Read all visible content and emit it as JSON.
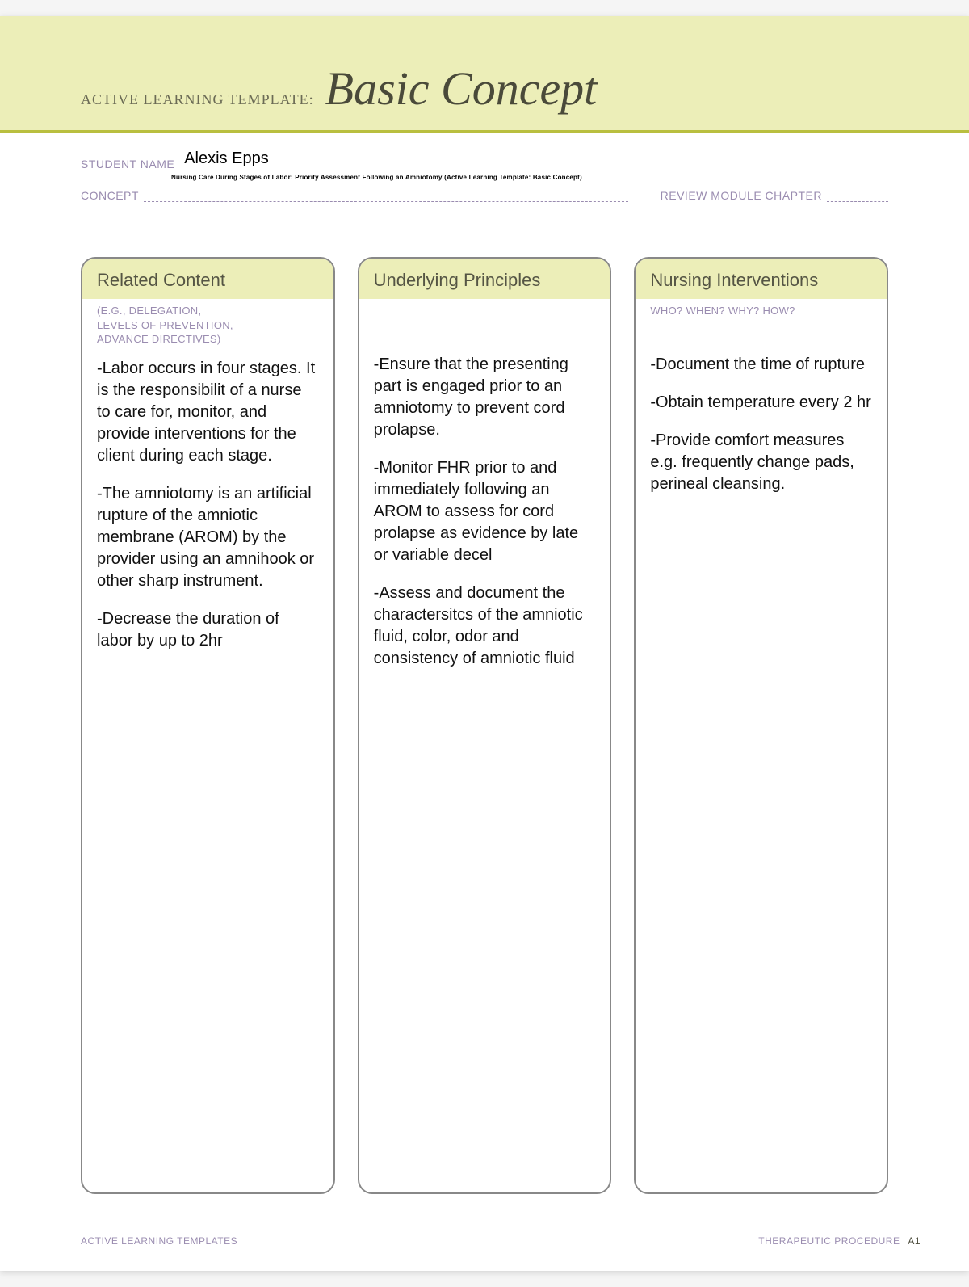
{
  "colors": {
    "banner_bg": "#eceeb8",
    "banner_rule": "#b9bf3f",
    "label_purple": "#9a8cb0",
    "title_olive": "#4a4a3a",
    "card_border": "#888888"
  },
  "banner": {
    "prefix": "ACTIVE LEARNING TEMPLATE:",
    "title": "Basic Concept"
  },
  "fields": {
    "student_label": "STUDENT NAME",
    "student_value": "Alexis Epps",
    "concept_label": "CONCEPT",
    "concept_tiny": "Nursing Care During Stages of Labor: Priority Assessment Following an Amniotomy (Active Learning Template: Basic Concept)",
    "review_label": "REVIEW MODULE CHAPTER"
  },
  "columns": [
    {
      "title": "Related Content",
      "sub": "(E.G., DELEGATION,\nLEVELS OF PREVENTION,\nADVANCE DIRECTIVES)",
      "body": [
        "-Labor occurs in four stages.  It is the responsibilit of a nurse to care for, monitor, and provide interventions for the client during each stage.",
        "-The amniotomy is an artificial rupture of the amniotic membrane (AROM) by the provider using an amnihook or other sharp instrument.",
        "-Decrease the duration of labor by up to 2hr"
      ]
    },
    {
      "title": "Underlying Principles",
      "sub": "",
      "body": [
        "-Ensure that the presenting part is engaged prior to an amniotomy to prevent cord prolapse.",
        "-Monitor FHR prior to and immediately following an AROM to assess for cord prolapse as evidence by late or variable decel",
        "-Assess and document the charactersitcs of the amniotic fluid, color, odor and consistency of amniotic fluid"
      ]
    },
    {
      "title": "Nursing Interventions",
      "sub": "WHO? WHEN? WHY? HOW?",
      "body": [
        "-Document the time of rupture",
        "-Obtain temperature every 2 hr",
        "-Provide comfort measures e.g. frequently change pads, perineal cleansing."
      ]
    }
  ],
  "footer": {
    "left": "ACTIVE LEARNING TEMPLATES",
    "right": "THERAPEUTIC PROCEDURE",
    "page": "A1"
  }
}
